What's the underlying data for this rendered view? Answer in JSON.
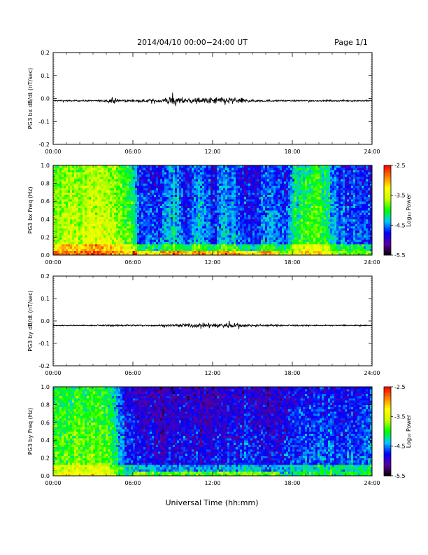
{
  "header": {
    "title": "2014/04/10   00:00−24:00 UT",
    "page": "Page 1/1"
  },
  "x_axis": {
    "label": "Universal Time (hh:mm)",
    "ticks": [
      "00:00",
      "06:00",
      "12:00",
      "18:00",
      "24:00"
    ],
    "range_hours": [
      0,
      24
    ]
  },
  "colorbar": {
    "label": "Log₁₀ Power",
    "ticks": [
      "-2.5",
      "-3.5",
      "-4.5",
      "-5.5"
    ],
    "range": [
      -5.5,
      -2.5
    ],
    "palette": [
      "#000000",
      "#5a00a0",
      "#0000ff",
      "#00c8ff",
      "#00ff00",
      "#c8ff00",
      "#ffff00",
      "#ff8000",
      "#ff0000"
    ]
  },
  "chart_data": [
    {
      "type": "line",
      "title": "",
      "xlabel": "",
      "ylabel": "PG3 bx dB/dt (nT/sec)",
      "ylim": [
        -0.2,
        0.2
      ],
      "yticks": [
        "0.2",
        "0.1",
        "0.0",
        "-0.1",
        "-0.2"
      ],
      "baseline": -0.01,
      "activity_profile": [
        {
          "hour": 0,
          "amplitude": 0.003
        },
        {
          "hour": 3,
          "amplitude": 0.003
        },
        {
          "hour": 4,
          "amplitude": 0.004
        },
        {
          "hour": 4.5,
          "amplitude": 0.012
        },
        {
          "hour": 5,
          "amplitude": 0.006
        },
        {
          "hour": 6,
          "amplitude": 0.004
        },
        {
          "hour": 8,
          "amplitude": 0.008
        },
        {
          "hour": 8.7,
          "amplitude": 0.018
        },
        {
          "hour": 9.5,
          "amplitude": 0.014
        },
        {
          "hour": 11,
          "amplitude": 0.012
        },
        {
          "hour": 13,
          "amplitude": 0.018
        },
        {
          "hour": 14,
          "amplitude": 0.012
        },
        {
          "hour": 15,
          "amplitude": 0.006
        },
        {
          "hour": 17,
          "amplitude": 0.003
        },
        {
          "hour": 24,
          "amplitude": 0.003
        }
      ]
    },
    {
      "type": "heatmap",
      "title": "",
      "xlabel": "",
      "ylabel": "PG3 bx Freq (Hz)",
      "ylim": [
        0.0,
        1.0
      ],
      "yticks": [
        "1.0",
        "0.8",
        "0.6",
        "0.4",
        "0.2",
        "0.0"
      ],
      "value_unit": "Log10 Power",
      "column_level_by_hour": [
        {
          "hour": 0,
          "level": -3.6
        },
        {
          "hour": 2,
          "level": -3.5
        },
        {
          "hour": 4,
          "level": -3.4
        },
        {
          "hour": 6,
          "level": -3.9
        },
        {
          "hour": 6.5,
          "level": -4.5
        },
        {
          "hour": 8,
          "level": -4.6
        },
        {
          "hour": 9,
          "level": -4.2
        },
        {
          "hour": 10,
          "level": -4.6
        },
        {
          "hour": 11,
          "level": -4.2
        },
        {
          "hour": 12,
          "level": -4.6
        },
        {
          "hour": 13,
          "level": -4.3
        },
        {
          "hour": 15,
          "level": -4.7
        },
        {
          "hour": 16.5,
          "level": -4.3
        },
        {
          "hour": 17.5,
          "level": -4.6
        },
        {
          "hour": 18.5,
          "level": -3.9
        },
        {
          "hour": 20,
          "level": -3.8
        },
        {
          "hour": 21.5,
          "level": -4.4
        },
        {
          "hour": 24,
          "level": -4.6
        }
      ],
      "low_frequency_enhancement": "strong below 0.05 Hz"
    },
    {
      "type": "line",
      "title": "",
      "xlabel": "",
      "ylabel": "PG3 by dB/dt (nT/sec)",
      "ylim": [
        -0.2,
        0.2
      ],
      "yticks": [
        "0.2",
        "0.1",
        "0.0",
        "-0.1",
        "-0.2"
      ],
      "baseline": -0.02,
      "activity_profile": [
        {
          "hour": 0,
          "amplitude": 0.002
        },
        {
          "hour": 3,
          "amplitude": 0.002
        },
        {
          "hour": 4.5,
          "amplitude": 0.004
        },
        {
          "hour": 6,
          "amplitude": 0.003
        },
        {
          "hour": 8,
          "amplitude": 0.004
        },
        {
          "hour": 10.5,
          "amplitude": 0.008
        },
        {
          "hour": 13,
          "amplitude": 0.012
        },
        {
          "hour": 15,
          "amplitude": 0.005
        },
        {
          "hour": 18,
          "amplitude": 0.003
        },
        {
          "hour": 24,
          "amplitude": 0.002
        }
      ]
    },
    {
      "type": "heatmap",
      "title": "",
      "xlabel": "Universal Time (hh:mm)",
      "ylabel": "PG3 by Freq (Hz)",
      "ylim": [
        0.0,
        1.0
      ],
      "yticks": [
        "1.0",
        "0.8",
        "0.6",
        "0.4",
        "0.2",
        "0.0"
      ],
      "value_unit": "Log10 Power",
      "column_level_by_hour": [
        {
          "hour": 0,
          "level": -3.9
        },
        {
          "hour": 2,
          "level": -3.7
        },
        {
          "hour": 4,
          "level": -3.8
        },
        {
          "hour": 5.5,
          "level": -4.6
        },
        {
          "hour": 8,
          "level": -4.8
        },
        {
          "hour": 10,
          "level": -4.7
        },
        {
          "hour": 12,
          "level": -4.8
        },
        {
          "hour": 14,
          "level": -4.6
        },
        {
          "hour": 16,
          "level": -4.8
        },
        {
          "hour": 18,
          "level": -4.6
        },
        {
          "hour": 20,
          "level": -4.5
        },
        {
          "hour": 22,
          "level": -4.6
        },
        {
          "hour": 24,
          "level": -4.4
        }
      ],
      "low_frequency_enhancement": "moderate below 0.1 Hz, hours 6-18"
    }
  ]
}
